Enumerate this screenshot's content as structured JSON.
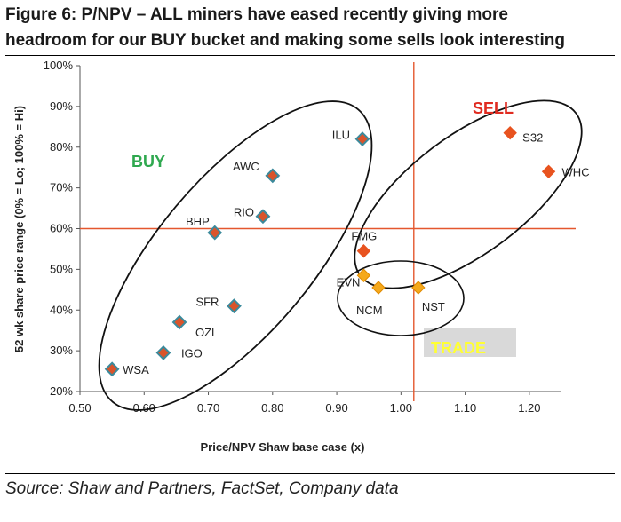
{
  "title": {
    "line1": "Figure 6: P/NPV – ALL miners have eased recently giving more",
    "line2": "headroom for our BUY bucket and making some sells look interesting"
  },
  "source": "Source: Shaw and Partners, FactSet, Company data",
  "colors": {
    "sell": "#e8531f",
    "buy_point": "#d9542b",
    "buy_point_border": "#3b8a9c",
    "trade": "#f5a91c",
    "ref_line": "#e4572e",
    "buy_text": "#2fa84f",
    "sell_text": "#e02b20",
    "trade_text": "#ffff33",
    "trade_box": "#d9d9d9"
  },
  "chart_data": {
    "type": "scatter",
    "title": "",
    "xlabel": "Price/NPV Shaw base case (x)",
    "ylabel": "52 wk share price range (0% = Lo; 100% = Hi)",
    "xlim": [
      0.5,
      1.25
    ],
    "ylim": [
      20,
      100
    ],
    "x_ticks": [
      "0.50",
      "0.60",
      "0.70",
      "0.80",
      "0.90",
      "1.00",
      "1.10",
      "1.20"
    ],
    "y_ticks": [
      "20%",
      "30%",
      "40%",
      "50%",
      "60%",
      "70%",
      "80%",
      "90%",
      "100%"
    ],
    "reference_lines": {
      "x": 1.02,
      "y": 60
    },
    "grid": false,
    "zones": [
      {
        "label": "BUY",
        "color": "#2fa84f"
      },
      {
        "label": "SELL",
        "color": "#e02b20"
      },
      {
        "label": "TRADE",
        "color": "#ffff33"
      }
    ],
    "points": [
      {
        "label": "WSA",
        "x": 0.55,
        "y": 25.5,
        "group": "buy"
      },
      {
        "label": "IGO",
        "x": 0.63,
        "y": 29.5,
        "group": "buy"
      },
      {
        "label": "OZL",
        "x": 0.655,
        "y": 37,
        "group": "buy"
      },
      {
        "label": "SFR",
        "x": 0.74,
        "y": 41,
        "group": "buy"
      },
      {
        "label": "BHP",
        "x": 0.71,
        "y": 59,
        "group": "buy"
      },
      {
        "label": "RIO",
        "x": 0.785,
        "y": 63,
        "group": "buy"
      },
      {
        "label": "AWC",
        "x": 0.8,
        "y": 73,
        "group": "buy"
      },
      {
        "label": "ILU",
        "x": 0.94,
        "y": 82,
        "group": "buy"
      },
      {
        "label": "FMG",
        "x": 0.942,
        "y": 54.5,
        "group": "sell"
      },
      {
        "label": "S32",
        "x": 1.17,
        "y": 83.5,
        "group": "sell"
      },
      {
        "label": "WHC",
        "x": 1.23,
        "y": 74,
        "group": "sell"
      },
      {
        "label": "EVN",
        "x": 0.942,
        "y": 48.5,
        "group": "trade"
      },
      {
        "label": "NCM",
        "x": 0.965,
        "y": 45.5,
        "group": "trade"
      },
      {
        "label": "NST",
        "x": 1.027,
        "y": 45.5,
        "group": "trade"
      }
    ]
  }
}
